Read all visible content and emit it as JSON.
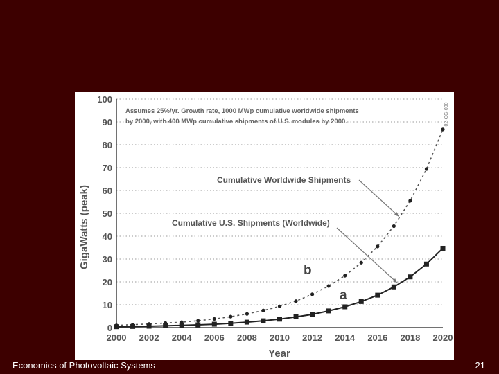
{
  "slide": {
    "footer_title": "Economics of Photovoltaic Systems",
    "page_number": "21",
    "background": "#3d0000"
  },
  "chart_data": {
    "type": "line",
    "note_line1": "Assumes 25%/yr. Growth rate, 1000 MWp cumulative worldwide shipments",
    "note_line2": "by 2000, with 400 MWp cumulative shipments of U.S. modules by 2000.",
    "watermark": "02-GG-000",
    "xlabel": "Year",
    "ylabel": "GigaWatts (peak)",
    "xlim": [
      2000,
      2020
    ],
    "ylim": [
      0,
      100
    ],
    "x_ticks": [
      2000,
      2002,
      2004,
      2006,
      2008,
      2010,
      2012,
      2014,
      2016,
      2018,
      2020
    ],
    "y_ticks": [
      0,
      10,
      20,
      30,
      40,
      50,
      60,
      70,
      80,
      90,
      100
    ],
    "grid": "horizontal-dotted",
    "x": [
      2000,
      2001,
      2002,
      2003,
      2004,
      2005,
      2006,
      2007,
      2008,
      2009,
      2010,
      2011,
      2012,
      2013,
      2014,
      2015,
      2016,
      2017,
      2018,
      2019,
      2020
    ],
    "series": [
      {
        "name": "Cumulative Worldwide Shipments",
        "label": "b",
        "style": "dashed",
        "marker": "dot",
        "values": [
          1.0,
          1.3,
          1.6,
          2.0,
          2.4,
          3.0,
          3.8,
          4.8,
          6.0,
          7.5,
          9.3,
          11.6,
          14.6,
          18.2,
          22.7,
          28.4,
          35.5,
          44.4,
          55.5,
          69.4,
          86.7
        ]
      },
      {
        "name": "Cumulative U.S. Shipments (Worldwide)",
        "label": "a",
        "style": "solid",
        "marker": "square",
        "values": [
          0.4,
          0.5,
          0.6,
          0.8,
          1.0,
          1.2,
          1.5,
          1.9,
          2.4,
          3.0,
          3.7,
          4.7,
          5.8,
          7.3,
          9.1,
          11.4,
          14.2,
          17.8,
          22.2,
          27.8,
          34.7
        ]
      }
    ],
    "annotations": [
      {
        "text": "Cumulative Worldwide Shipments",
        "series": 0,
        "at_x": 2017.3
      },
      {
        "text": "Cumulative U.S. Shipments (Worldwide)",
        "series": 1,
        "at_x": 2017.2
      }
    ]
  }
}
